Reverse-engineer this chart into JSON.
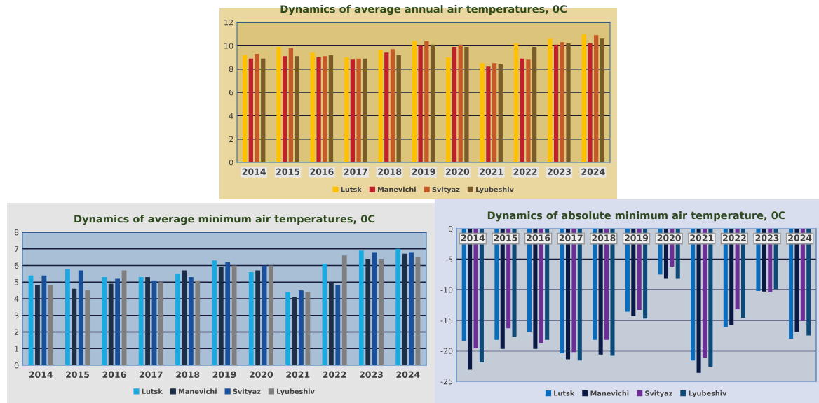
{
  "chart_data": [
    {
      "type": "bar",
      "title": "Dynamics of average annual air temperatures, 0C",
      "categories": [
        "2014",
        "2015",
        "2016",
        "2017",
        "2018",
        "2019",
        "2020",
        "2021",
        "2022",
        "2023",
        "2024"
      ],
      "series": [
        {
          "name": "Lutsk",
          "color": "#ffc000",
          "values": [
            9.2,
            9.9,
            9.4,
            9.0,
            9.6,
            10.4,
            9.0,
            8.5,
            10.2,
            10.6,
            11.0
          ]
        },
        {
          "name": "Manevichi",
          "color": "#c0202a",
          "values": [
            8.9,
            9.1,
            9.0,
            8.8,
            9.4,
            10.0,
            9.9,
            8.2,
            8.9,
            10.1,
            10.2
          ]
        },
        {
          "name": "Svityaz",
          "color": "#c55a28",
          "values": [
            9.3,
            9.8,
            9.1,
            8.9,
            9.7,
            10.4,
            10.1,
            8.5,
            8.8,
            10.3,
            10.9
          ]
        },
        {
          "name": "Lyubeshiv",
          "color": "#7a5c28",
          "values": [
            8.9,
            9.1,
            9.2,
            8.9,
            9.2,
            10.1,
            9.9,
            8.4,
            9.9,
            10.2,
            10.6
          ]
        }
      ],
      "ylim": [
        0,
        12
      ],
      "yticks": [
        0,
        2,
        4,
        6,
        8,
        10,
        12
      ],
      "grid": "y",
      "legend": "bottom"
    },
    {
      "type": "bar",
      "title": "Dynamics of average minimum air temperatures, 0C",
      "categories": [
        "2014",
        "2015",
        "2016",
        "2017",
        "2018",
        "2019",
        "2020",
        "2021",
        "2022",
        "2023",
        "2024"
      ],
      "series": [
        {
          "name": "Lutsk",
          "color": "#1aa9e0",
          "values": [
            5.4,
            5.8,
            5.3,
            5.3,
            5.5,
            6.3,
            5.6,
            4.4,
            6.1,
            6.9,
            7.0
          ]
        },
        {
          "name": "Manevichi",
          "color": "#1c2e48",
          "values": [
            4.8,
            4.6,
            4.9,
            5.3,
            5.7,
            5.9,
            5.7,
            4.1,
            5.0,
            6.4,
            6.7
          ]
        },
        {
          "name": "Svityaz",
          "color": "#1a4f9a",
          "values": [
            5.4,
            5.7,
            5.2,
            5.1,
            5.3,
            6.2,
            6.0,
            4.5,
            4.8,
            6.8,
            6.8
          ]
        },
        {
          "name": "Lyubeshiv",
          "color": "#7f7f7f",
          "values": [
            4.8,
            4.5,
            5.7,
            5.0,
            5.1,
            6.0,
            6.0,
            4.4,
            6.6,
            6.4,
            6.5
          ]
        }
      ],
      "ylim": [
        0,
        8
      ],
      "yticks": [
        0,
        1,
        2,
        3,
        4,
        5,
        6,
        7,
        8
      ],
      "grid": "y",
      "legend": "bottom"
    },
    {
      "type": "bar",
      "title": "Dynamics of absolute minimum air temperature, 0C",
      "categories": [
        "2014",
        "2015",
        "2016",
        "2017",
        "2018",
        "2019",
        "2020",
        "2021",
        "2022",
        "2023",
        "2024"
      ],
      "series": [
        {
          "name": "Lutsk",
          "color": "#0a6cbc",
          "values": [
            -18.4,
            -18.2,
            -16.9,
            -20.4,
            -18.2,
            -13.6,
            -7.5,
            -21.6,
            -16.1,
            -10.2,
            -18.0
          ]
        },
        {
          "name": "Manevichi",
          "color": "#0a1a44",
          "values": [
            -23.1,
            -19.7,
            -19.7,
            -21.4,
            -20.6,
            -14.3,
            -8.2,
            -23.6,
            -15.7,
            -10.3,
            -16.9
          ]
        },
        {
          "name": "Svityaz",
          "color": "#6b2f96",
          "values": [
            -19.6,
            -16.3,
            -18.7,
            -20.2,
            -18.2,
            -13.3,
            -6.2,
            -21.1,
            -13.2,
            -10.4,
            -15.1
          ]
        },
        {
          "name": "Lyubeshiv",
          "color": "#0e4a78",
          "values": [
            -21.9,
            -17.7,
            -18.2,
            -21.6,
            -20.8,
            -14.7,
            -8.2,
            -22.6,
            -14.6,
            -9.9,
            -17.5
          ]
        }
      ],
      "ylim": [
        -25,
        0
      ],
      "yticks": [
        {
          "value": -25,
          "label": "-25"
        },
        {
          "value": -20,
          "label": "-20"
        },
        {
          "value": -15,
          "label": "-15"
        },
        {
          "value": -10,
          "label": "-10"
        },
        {
          "value": -5,
          "label": "-5"
        },
        0
      ],
      "grid": "y",
      "legend": "bottom"
    }
  ]
}
